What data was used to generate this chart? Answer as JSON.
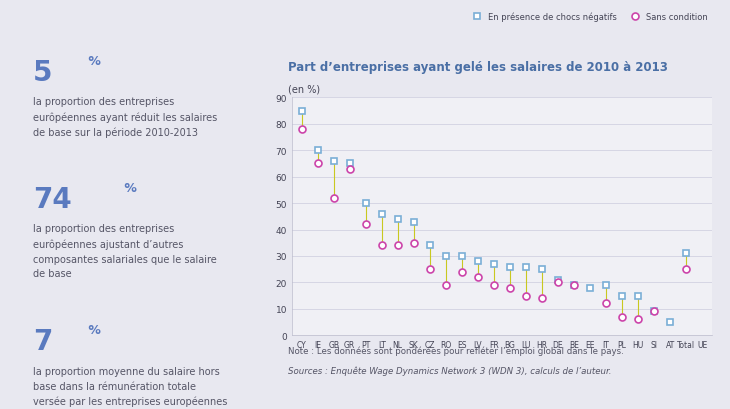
{
  "title": "Part d’entreprises ayant gelé les salaires de 2010 à 2013",
  "ylabel": "(en %)",
  "categories": [
    "CY",
    "IE",
    "GB",
    "GR",
    "PT",
    "LT",
    "NL",
    "SK",
    "CZ",
    "RO",
    "ES",
    "LV",
    "FR",
    "BG",
    "LU",
    "HR",
    "DE",
    "BE",
    "EE",
    "IT",
    "PL",
    "HU",
    "SI",
    "AT",
    "Total",
    "UE"
  ],
  "serie1_name": "En présence de chocs négatifs",
  "serie2_name": "Sans condition",
  "serie1": [
    85,
    70,
    66,
    65,
    50,
    46,
    44,
    43,
    34,
    30,
    30,
    28,
    27,
    26,
    26,
    25,
    21,
    19,
    18,
    19,
    15,
    15,
    9,
    5,
    31,
    null
  ],
  "serie2": [
    78,
    65,
    52,
    63,
    42,
    34,
    34,
    35,
    25,
    19,
    24,
    22,
    19,
    18,
    15,
    14,
    20,
    19,
    null,
    12,
    7,
    6,
    9,
    null,
    25,
    null
  ],
  "ylim": [
    0,
    90
  ],
  "yticks": [
    0,
    10,
    20,
    30,
    40,
    50,
    60,
    70,
    80,
    90
  ],
  "bg_color": "#e8e8f0",
  "plot_bg_color": "#f0f0f5",
  "title_color": "#4a6fa5",
  "stat_color": "#5a7abf",
  "text_color": "#555566",
  "serie1_color": "#7aaed6",
  "serie2_color": "#cc44aa",
  "connector_color": "#c8c820",
  "note_line1": "Note : Les données sont pondérées pour refléter l’emploi global dans le pays.",
  "note_line2": "Sources : Enquête Wage Dynamics Network 3 (WDN 3), calculs de l’auteur.",
  "stat1_num": "5",
  "stat1_pct": " %",
  "stat1_text": "la proportion des entreprises\neurôpéennes ayant réduit les salaires\nde base sur la période 2010-2013",
  "stat2_num": "74",
  "stat2_pct": " %",
  "stat2_text": "la proportion des entreprises\neurôpéennes ajustant d’autres\ncomposantes salariales que le salaire\nde base",
  "stat3_num": "7",
  "stat3_pct": " %",
  "stat3_text": "la proportion moyenne du salaire hors\nbase dans la rémunération totale\nversée par les entreprises européennes"
}
